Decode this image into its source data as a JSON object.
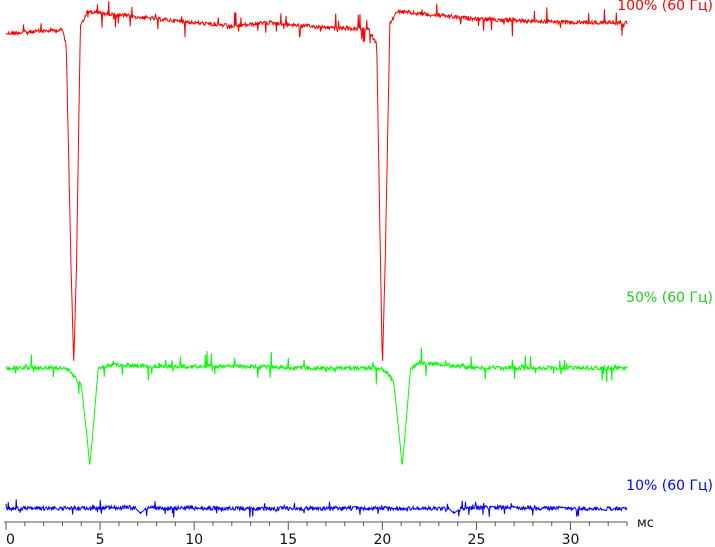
{
  "chart_data": {
    "type": "line",
    "xlabel": "мс",
    "xlim": [
      0,
      33
    ],
    "x_ticks": [
      0,
      5,
      10,
      15,
      20,
      25,
      30
    ],
    "grid": false,
    "legend": "right, inline labels",
    "y_axis_shown": false,
    "series": [
      {
        "name": "100% (60 Гц)",
        "color": "#ff0000",
        "points": [
          [
            0,
            0.93
          ],
          [
            3.0,
            0.94
          ],
          [
            3.2,
            0.9
          ],
          [
            3.45,
            0.3
          ],
          [
            3.6,
            0.02
          ],
          [
            3.75,
            0.3
          ],
          [
            3.95,
            0.95
          ],
          [
            4.3,
            0.99
          ],
          [
            8,
            0.97
          ],
          [
            10,
            0.96
          ],
          [
            12,
            0.95
          ],
          [
            14,
            0.96
          ],
          [
            16,
            0.95
          ],
          [
            19.3,
            0.94
          ],
          [
            19.7,
            0.9
          ],
          [
            19.9,
            0.3
          ],
          [
            20.0,
            0.01
          ],
          [
            20.15,
            0.3
          ],
          [
            20.4,
            0.96
          ],
          [
            20.8,
            0.99
          ],
          [
            25,
            0.97
          ],
          [
            30,
            0.96
          ],
          [
            33,
            0.96
          ]
        ]
      },
      {
        "name": "50% (60 Гц)",
        "color": "#00ff00",
        "points": [
          [
            0,
            0.6
          ],
          [
            3.0,
            0.6
          ],
          [
            3.4,
            0.58
          ],
          [
            4.0,
            0.5
          ],
          [
            4.3,
            0.2
          ],
          [
            4.45,
            0.02
          ],
          [
            4.6,
            0.2
          ],
          [
            4.9,
            0.6
          ],
          [
            5.5,
            0.62
          ],
          [
            8,
            0.61
          ],
          [
            12,
            0.61
          ],
          [
            16,
            0.6
          ],
          [
            19.8,
            0.6
          ],
          [
            20.2,
            0.58
          ],
          [
            20.6,
            0.52
          ],
          [
            20.9,
            0.2
          ],
          [
            21.05,
            0.02
          ],
          [
            21.2,
            0.2
          ],
          [
            21.5,
            0.6
          ],
          [
            22,
            0.63
          ],
          [
            25,
            0.6
          ],
          [
            30,
            0.6
          ],
          [
            33,
            0.6
          ]
        ]
      },
      {
        "name": "10% (60 Гц)",
        "color": "#0000ff",
        "points": [
          [
            0,
            0.28
          ],
          [
            3,
            0.28
          ],
          [
            5,
            0.29
          ],
          [
            6.5,
            0.3
          ],
          [
            6.9,
            0.28
          ],
          [
            7.15,
            0.17
          ],
          [
            7.35,
            0.25
          ],
          [
            7.6,
            0.29
          ],
          [
            9,
            0.29
          ],
          [
            11,
            0.28
          ],
          [
            13,
            0.27
          ],
          [
            15,
            0.28
          ],
          [
            17,
            0.28
          ],
          [
            19,
            0.28
          ],
          [
            21,
            0.28
          ],
          [
            23.2,
            0.28
          ],
          [
            23.55,
            0.27
          ],
          [
            23.8,
            0.17
          ],
          [
            24.05,
            0.25
          ],
          [
            24.4,
            0.29
          ],
          [
            26,
            0.3
          ],
          [
            28,
            0.29
          ],
          [
            30,
            0.28
          ],
          [
            33,
            0.27
          ]
        ]
      }
    ]
  }
}
